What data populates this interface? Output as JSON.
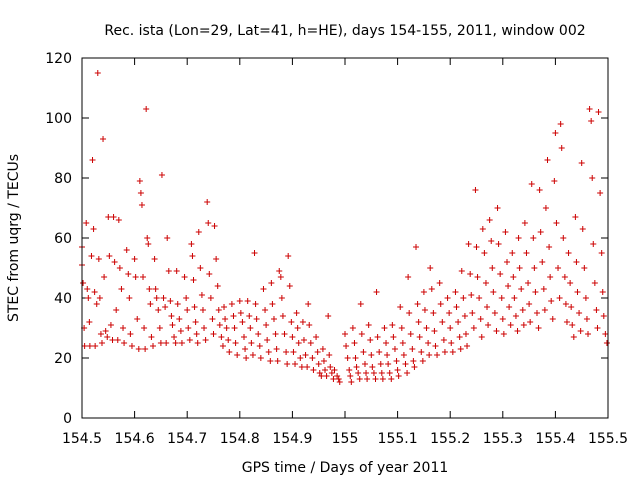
{
  "chart_data": {
    "type": "scatter",
    "title": "Rec. ista (Lon=29, Lat=41, h=HE), days 154-155, 2011, window 002",
    "xlabel": "GPS time / Days of year 2011",
    "ylabel": "STEC from uqrg / TECUs",
    "xlim": [
      154.5,
      155.5
    ],
    "ylim": [
      0,
      120
    ],
    "xticks": [
      "154.5",
      "154.6",
      "154.7",
      "154.8",
      "154.9",
      "155",
      "155.1",
      "155.2",
      "155.3",
      "155.4",
      "155.5"
    ],
    "yticks": [
      "0",
      "20",
      "40",
      "60",
      "80",
      "100",
      "120"
    ],
    "grid": false,
    "marker": "+",
    "marker_color": "#cc0000",
    "points": [
      [
        154.5,
        57
      ],
      [
        154.5,
        51
      ],
      [
        154.502,
        45
      ],
      [
        154.504,
        30
      ],
      [
        154.505,
        24
      ],
      [
        154.508,
        65
      ],
      [
        154.51,
        43
      ],
      [
        154.512,
        40
      ],
      [
        154.514,
        32
      ],
      [
        154.515,
        24
      ],
      [
        154.518,
        54
      ],
      [
        154.52,
        86
      ],
      [
        154.522,
        63
      ],
      [
        154.524,
        42
      ],
      [
        154.525,
        24
      ],
      [
        154.528,
        38
      ],
      [
        154.53,
        115
      ],
      [
        154.532,
        53
      ],
      [
        154.534,
        40
      ],
      [
        154.536,
        28
      ],
      [
        154.538,
        25
      ],
      [
        154.54,
        93
      ],
      [
        154.542,
        47
      ],
      [
        154.545,
        29
      ],
      [
        154.548,
        27
      ],
      [
        154.55,
        67
      ],
      [
        154.552,
        54
      ],
      [
        154.555,
        31
      ],
      [
        154.558,
        26
      ],
      [
        154.56,
        67
      ],
      [
        154.562,
        52
      ],
      [
        154.565,
        36
      ],
      [
        154.568,
        26
      ],
      [
        154.57,
        66
      ],
      [
        154.572,
        50
      ],
      [
        154.575,
        43
      ],
      [
        154.578,
        30
      ],
      [
        154.58,
        25
      ],
      [
        154.585,
        56
      ],
      [
        154.588,
        48
      ],
      [
        154.59,
        40
      ],
      [
        154.592,
        28
      ],
      [
        154.595,
        24
      ],
      [
        154.6,
        53
      ],
      [
        154.602,
        47
      ],
      [
        154.605,
        33
      ],
      [
        154.608,
        23
      ],
      [
        154.61,
        79
      ],
      [
        154.612,
        75
      ],
      [
        154.614,
        71
      ],
      [
        154.616,
        47
      ],
      [
        154.618,
        30
      ],
      [
        154.62,
        23
      ],
      [
        154.622,
        103
      ],
      [
        154.624,
        60
      ],
      [
        154.626,
        58
      ],
      [
        154.628,
        43
      ],
      [
        154.63,
        38
      ],
      [
        154.632,
        27
      ],
      [
        154.635,
        24
      ],
      [
        154.638,
        53
      ],
      [
        154.64,
        43
      ],
      [
        154.642,
        40
      ],
      [
        154.645,
        36
      ],
      [
        154.648,
        30
      ],
      [
        154.65,
        25
      ],
      [
        154.652,
        81
      ],
      [
        154.655,
        40
      ],
      [
        154.658,
        37
      ],
      [
        154.66,
        25
      ],
      [
        154.662,
        60
      ],
      [
        154.665,
        49
      ],
      [
        154.668,
        39
      ],
      [
        154.67,
        34
      ],
      [
        154.672,
        31
      ],
      [
        154.675,
        27
      ],
      [
        154.678,
        25
      ],
      [
        154.68,
        49
      ],
      [
        154.682,
        38
      ],
      [
        154.685,
        33
      ],
      [
        154.688,
        29
      ],
      [
        154.69,
        25
      ],
      [
        154.695,
        47
      ],
      [
        154.698,
        40
      ],
      [
        154.7,
        36
      ],
      [
        154.702,
        30
      ],
      [
        154.705,
        26
      ],
      [
        154.708,
        58
      ],
      [
        154.71,
        54
      ],
      [
        154.712,
        46
      ],
      [
        154.714,
        37
      ],
      [
        154.716,
        32
      ],
      [
        154.718,
        28
      ],
      [
        154.72,
        25
      ],
      [
        154.722,
        62
      ],
      [
        154.725,
        50
      ],
      [
        154.728,
        41
      ],
      [
        154.73,
        36
      ],
      [
        154.732,
        30
      ],
      [
        154.735,
        26
      ],
      [
        154.738,
        72
      ],
      [
        154.74,
        65
      ],
      [
        154.742,
        48
      ],
      [
        154.745,
        40
      ],
      [
        154.748,
        33
      ],
      [
        154.75,
        28
      ],
      [
        154.752,
        64
      ],
      [
        154.755,
        53
      ],
      [
        154.758,
        44
      ],
      [
        154.76,
        36
      ],
      [
        154.762,
        31
      ],
      [
        154.765,
        27
      ],
      [
        154.768,
        24
      ],
      [
        154.77,
        37
      ],
      [
        154.772,
        33
      ],
      [
        154.775,
        30
      ],
      [
        154.778,
        26
      ],
      [
        154.78,
        22
      ],
      [
        154.785,
        38
      ],
      [
        154.788,
        34
      ],
      [
        154.79,
        30
      ],
      [
        154.792,
        25
      ],
      [
        154.795,
        21
      ],
      [
        154.8,
        39
      ],
      [
        154.802,
        35
      ],
      [
        154.805,
        32
      ],
      [
        154.808,
        27
      ],
      [
        154.81,
        23
      ],
      [
        154.812,
        20
      ],
      [
        154.815,
        39
      ],
      [
        154.818,
        34
      ],
      [
        154.82,
        30
      ],
      [
        154.822,
        25
      ],
      [
        154.825,
        21
      ],
      [
        154.828,
        55
      ],
      [
        154.83,
        38
      ],
      [
        154.832,
        33
      ],
      [
        154.835,
        28
      ],
      [
        154.838,
        24
      ],
      [
        154.84,
        20
      ],
      [
        154.845,
        43
      ],
      [
        154.848,
        36
      ],
      [
        154.85,
        31
      ],
      [
        154.852,
        26
      ],
      [
        154.855,
        22
      ],
      [
        154.858,
        19
      ],
      [
        154.86,
        45
      ],
      [
        154.862,
        38
      ],
      [
        154.865,
        33
      ],
      [
        154.868,
        28
      ],
      [
        154.87,
        23
      ],
      [
        154.872,
        19
      ],
      [
        154.875,
        49
      ],
      [
        154.878,
        47
      ],
      [
        154.88,
        40
      ],
      [
        154.882,
        34
      ],
      [
        154.885,
        28
      ],
      [
        154.888,
        22
      ],
      [
        154.89,
        18
      ],
      [
        154.892,
        54
      ],
      [
        154.895,
        44
      ],
      [
        154.898,
        32
      ],
      [
        154.9,
        27
      ],
      [
        154.902,
        22
      ],
      [
        154.905,
        18
      ],
      [
        154.908,
        35
      ],
      [
        154.91,
        30
      ],
      [
        154.912,
        25
      ],
      [
        154.915,
        20
      ],
      [
        154.918,
        17
      ],
      [
        154.92,
        32
      ],
      [
        154.922,
        26
      ],
      [
        154.925,
        21
      ],
      [
        154.928,
        17
      ],
      [
        154.93,
        38
      ],
      [
        154.932,
        31
      ],
      [
        154.935,
        25
      ],
      [
        154.938,
        20
      ],
      [
        154.94,
        16
      ],
      [
        154.945,
        27
      ],
      [
        154.948,
        22
      ],
      [
        154.95,
        18
      ],
      [
        154.952,
        15
      ],
      [
        154.955,
        14
      ],
      [
        154.958,
        23
      ],
      [
        154.96,
        19
      ],
      [
        154.962,
        16
      ],
      [
        154.965,
        14
      ],
      [
        154.968,
        34
      ],
      [
        154.97,
        21
      ],
      [
        154.972,
        17
      ],
      [
        154.975,
        15
      ],
      [
        154.978,
        13
      ],
      [
        154.98,
        16
      ],
      [
        154.985,
        14
      ],
      [
        154.988,
        13
      ],
      [
        154.99,
        12
      ],
      [
        155.0,
        28
      ],
      [
        155.002,
        24
      ],
      [
        155.005,
        20
      ],
      [
        155.008,
        16
      ],
      [
        155.01,
        14
      ],
      [
        155.012,
        12
      ],
      [
        155.015,
        30
      ],
      [
        155.018,
        25
      ],
      [
        155.02,
        20
      ],
      [
        155.022,
        17
      ],
      [
        155.025,
        15
      ],
      [
        155.028,
        13
      ],
      [
        155.03,
        38
      ],
      [
        155.032,
        28
      ],
      [
        155.035,
        22
      ],
      [
        155.038,
        18
      ],
      [
        155.04,
        15
      ],
      [
        155.042,
        13
      ],
      [
        155.045,
        31
      ],
      [
        155.048,
        26
      ],
      [
        155.05,
        21
      ],
      [
        155.052,
        17
      ],
      [
        155.055,
        15
      ],
      [
        155.058,
        13
      ],
      [
        155.06,
        42
      ],
      [
        155.062,
        27
      ],
      [
        155.065,
        22
      ],
      [
        155.068,
        18
      ],
      [
        155.07,
        15
      ],
      [
        155.072,
        13
      ],
      [
        155.075,
        30
      ],
      [
        155.078,
        25
      ],
      [
        155.08,
        21
      ],
      [
        155.082,
        18
      ],
      [
        155.085,
        15
      ],
      [
        155.088,
        13
      ],
      [
        155.09,
        31
      ],
      [
        155.092,
        27
      ],
      [
        155.095,
        23
      ],
      [
        155.098,
        19
      ],
      [
        155.1,
        16
      ],
      [
        155.102,
        14
      ],
      [
        155.105,
        37
      ],
      [
        155.108,
        30
      ],
      [
        155.11,
        25
      ],
      [
        155.112,
        21
      ],
      [
        155.115,
        18
      ],
      [
        155.118,
        15
      ],
      [
        155.12,
        47
      ],
      [
        155.122,
        35
      ],
      [
        155.125,
        28
      ],
      [
        155.128,
        23
      ],
      [
        155.13,
        19
      ],
      [
        155.132,
        17
      ],
      [
        155.135,
        57
      ],
      [
        155.138,
        38
      ],
      [
        155.14,
        32
      ],
      [
        155.142,
        27
      ],
      [
        155.145,
        22
      ],
      [
        155.148,
        19
      ],
      [
        155.15,
        42
      ],
      [
        155.152,
        36
      ],
      [
        155.155,
        30
      ],
      [
        155.158,
        25
      ],
      [
        155.16,
        21
      ],
      [
        155.162,
        50
      ],
      [
        155.165,
        43
      ],
      [
        155.168,
        35
      ],
      [
        155.17,
        29
      ],
      [
        155.172,
        24
      ],
      [
        155.175,
        21
      ],
      [
        155.18,
        45
      ],
      [
        155.182,
        38
      ],
      [
        155.185,
        32
      ],
      [
        155.188,
        26
      ],
      [
        155.19,
        22
      ],
      [
        155.195,
        40
      ],
      [
        155.198,
        35
      ],
      [
        155.2,
        30
      ],
      [
        155.202,
        25
      ],
      [
        155.205,
        22
      ],
      [
        155.21,
        42
      ],
      [
        155.212,
        37
      ],
      [
        155.215,
        32
      ],
      [
        155.218,
        27
      ],
      [
        155.22,
        23
      ],
      [
        155.222,
        49
      ],
      [
        155.225,
        40
      ],
      [
        155.228,
        34
      ],
      [
        155.23,
        28
      ],
      [
        155.232,
        24
      ],
      [
        155.235,
        58
      ],
      [
        155.238,
        48
      ],
      [
        155.24,
        41
      ],
      [
        155.242,
        35
      ],
      [
        155.245,
        30
      ],
      [
        155.248,
        76
      ],
      [
        155.25,
        57
      ],
      [
        155.252,
        47
      ],
      [
        155.255,
        40
      ],
      [
        155.258,
        33
      ],
      [
        155.26,
        27
      ],
      [
        155.262,
        63
      ],
      [
        155.265,
        55
      ],
      [
        155.268,
        45
      ],
      [
        155.27,
        37
      ],
      [
        155.272,
        31
      ],
      [
        155.275,
        66
      ],
      [
        155.278,
        59
      ],
      [
        155.28,
        50
      ],
      [
        155.282,
        42
      ],
      [
        155.285,
        35
      ],
      [
        155.288,
        29
      ],
      [
        155.29,
        70
      ],
      [
        155.292,
        58
      ],
      [
        155.295,
        48
      ],
      [
        155.298,
        40
      ],
      [
        155.3,
        33
      ],
      [
        155.302,
        28
      ],
      [
        155.305,
        62
      ],
      [
        155.308,
        52
      ],
      [
        155.31,
        44
      ],
      [
        155.312,
        37
      ],
      [
        155.315,
        31
      ],
      [
        155.318,
        55
      ],
      [
        155.32,
        47
      ],
      [
        155.322,
        40
      ],
      [
        155.325,
        34
      ],
      [
        155.328,
        29
      ],
      [
        155.33,
        60
      ],
      [
        155.332,
        50
      ],
      [
        155.335,
        43
      ],
      [
        155.338,
        36
      ],
      [
        155.34,
        31
      ],
      [
        155.342,
        65
      ],
      [
        155.345,
        55
      ],
      [
        155.348,
        45
      ],
      [
        155.35,
        38
      ],
      [
        155.352,
        32
      ],
      [
        155.355,
        78
      ],
      [
        155.358,
        60
      ],
      [
        155.36,
        50
      ],
      [
        155.362,
        42
      ],
      [
        155.365,
        35
      ],
      [
        155.368,
        30
      ],
      [
        155.37,
        76
      ],
      [
        155.372,
        62
      ],
      [
        155.375,
        52
      ],
      [
        155.378,
        43
      ],
      [
        155.38,
        36
      ],
      [
        155.382,
        70
      ],
      [
        155.385,
        86
      ],
      [
        155.388,
        57
      ],
      [
        155.39,
        47
      ],
      [
        155.392,
        39
      ],
      [
        155.395,
        33
      ],
      [
        155.398,
        79
      ],
      [
        155.4,
        95
      ],
      [
        155.402,
        65
      ],
      [
        155.405,
        50
      ],
      [
        155.408,
        40
      ],
      [
        155.41,
        98
      ],
      [
        155.412,
        90
      ],
      [
        155.415,
        60
      ],
      [
        155.418,
        47
      ],
      [
        155.42,
        38
      ],
      [
        155.422,
        32
      ],
      [
        155.425,
        55
      ],
      [
        155.428,
        45
      ],
      [
        155.43,
        37
      ],
      [
        155.432,
        31
      ],
      [
        155.435,
        27
      ],
      [
        155.438,
        67
      ],
      [
        155.44,
        52
      ],
      [
        155.442,
        42
      ],
      [
        155.445,
        35
      ],
      [
        155.448,
        29
      ],
      [
        155.45,
        85
      ],
      [
        155.452,
        63
      ],
      [
        155.455,
        50
      ],
      [
        155.458,
        40
      ],
      [
        155.46,
        33
      ],
      [
        155.462,
        28
      ],
      [
        155.465,
        103
      ],
      [
        155.468,
        99
      ],
      [
        155.47,
        80
      ],
      [
        155.472,
        58
      ],
      [
        155.475,
        45
      ],
      [
        155.478,
        36
      ],
      [
        155.48,
        30
      ],
      [
        155.482,
        102
      ],
      [
        155.485,
        75
      ],
      [
        155.488,
        55
      ],
      [
        155.49,
        42
      ],
      [
        155.492,
        34
      ],
      [
        155.495,
        28
      ],
      [
        155.498,
        25
      ]
    ]
  }
}
